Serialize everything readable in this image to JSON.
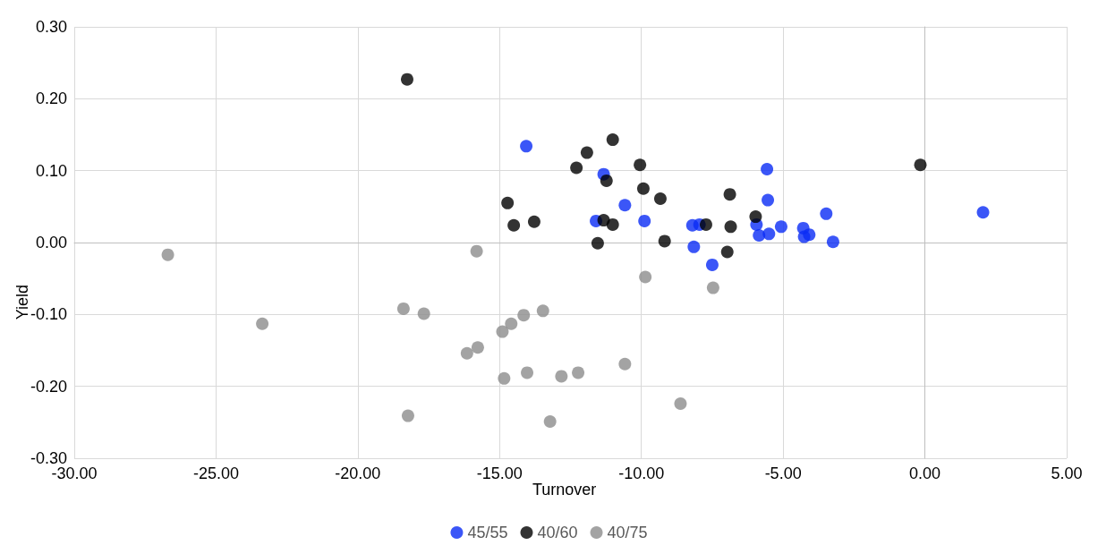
{
  "chart_data": {
    "type": "scatter",
    "xlabel": "Turnover",
    "ylabel": "Yield",
    "xlim": [
      -30,
      5
    ],
    "xticks": [
      {
        "value": -30,
        "label": "-30.00"
      },
      {
        "value": -25,
        "label": "-25.00"
      },
      {
        "value": -20,
        "label": "-20.00"
      },
      {
        "value": -15,
        "label": "-15.00"
      },
      {
        "value": -10,
        "label": "-10.00"
      },
      {
        "value": -5,
        "label": "-5.00"
      },
      {
        "value": 0,
        "label": "0.00"
      },
      {
        "value": 5,
        "label": "5.00"
      }
    ],
    "ylim": [
      -0.3,
      0.3
    ],
    "yticks": [
      {
        "value": -0.3,
        "label": "-0.30"
      },
      {
        "value": -0.2,
        "label": "-0.20"
      },
      {
        "value": -0.1,
        "label": "-0.10"
      },
      {
        "value": 0,
        "label": "0.00"
      },
      {
        "value": 0.1,
        "label": "0.10"
      },
      {
        "value": 0.2,
        "label": "0.20"
      },
      {
        "value": 0.3,
        "label": "0.30"
      }
    ],
    "grid": true,
    "legend": "bottom",
    "marker": "circle",
    "series": [
      {
        "name": "45/55",
        "color": "#0a2cf5",
        "x": [
          -14.06,
          -11.33,
          -11.6,
          -10.58,
          -9.89,
          -8.2,
          -7.95,
          -8.15,
          -7.5,
          -5.57,
          -5.54,
          -5.94,
          -5.85,
          -5.5,
          -5.07,
          -4.29,
          -4.26,
          -4.08,
          -3.48,
          -3.24,
          2.05
        ],
        "values": [
          0.134,
          0.095,
          0.03,
          0.052,
          0.03,
          0.024,
          0.025,
          -0.006,
          -0.031,
          0.102,
          0.059,
          0.025,
          0.01,
          0.012,
          0.022,
          0.02,
          0.008,
          0.011,
          0.04,
          0.001,
          0.042
        ]
      },
      {
        "name": "40/60",
        "color": "#000000",
        "x": [
          -18.26,
          -14.72,
          -14.5,
          -13.78,
          -12.29,
          -11.92,
          -11.01,
          -11.54,
          -11.33,
          -11.23,
          -11.01,
          -10.05,
          -9.93,
          -9.33,
          -9.18,
          -7.72,
          -6.88,
          -6.85,
          -6.97,
          -5.97,
          -0.16
        ],
        "values": [
          0.227,
          0.055,
          0.024,
          0.029,
          0.104,
          0.125,
          0.143,
          -0.001,
          0.031,
          0.086,
          0.025,
          0.108,
          0.075,
          0.061,
          0.002,
          0.025,
          0.067,
          0.022,
          -0.013,
          0.036,
          0.108
        ]
      },
      {
        "name": "40/75",
        "color": "#8c8c8c",
        "x": [
          -26.7,
          -23.37,
          -18.39,
          -18.23,
          -17.67,
          -16.15,
          -15.81,
          -15.77,
          -14.9,
          -14.84,
          -14.59,
          -14.15,
          -14.03,
          -13.47,
          -13.22,
          -12.82,
          -12.23,
          -10.58,
          -9.86,
          -8.62,
          -7.47
        ],
        "values": [
          -0.017,
          -0.113,
          -0.092,
          -0.241,
          -0.099,
          -0.154,
          -0.012,
          -0.146,
          -0.124,
          -0.189,
          -0.113,
          -0.101,
          -0.181,
          -0.095,
          -0.249,
          -0.186,
          -0.181,
          -0.169,
          -0.048,
          -0.224,
          -0.063
        ]
      }
    ]
  }
}
